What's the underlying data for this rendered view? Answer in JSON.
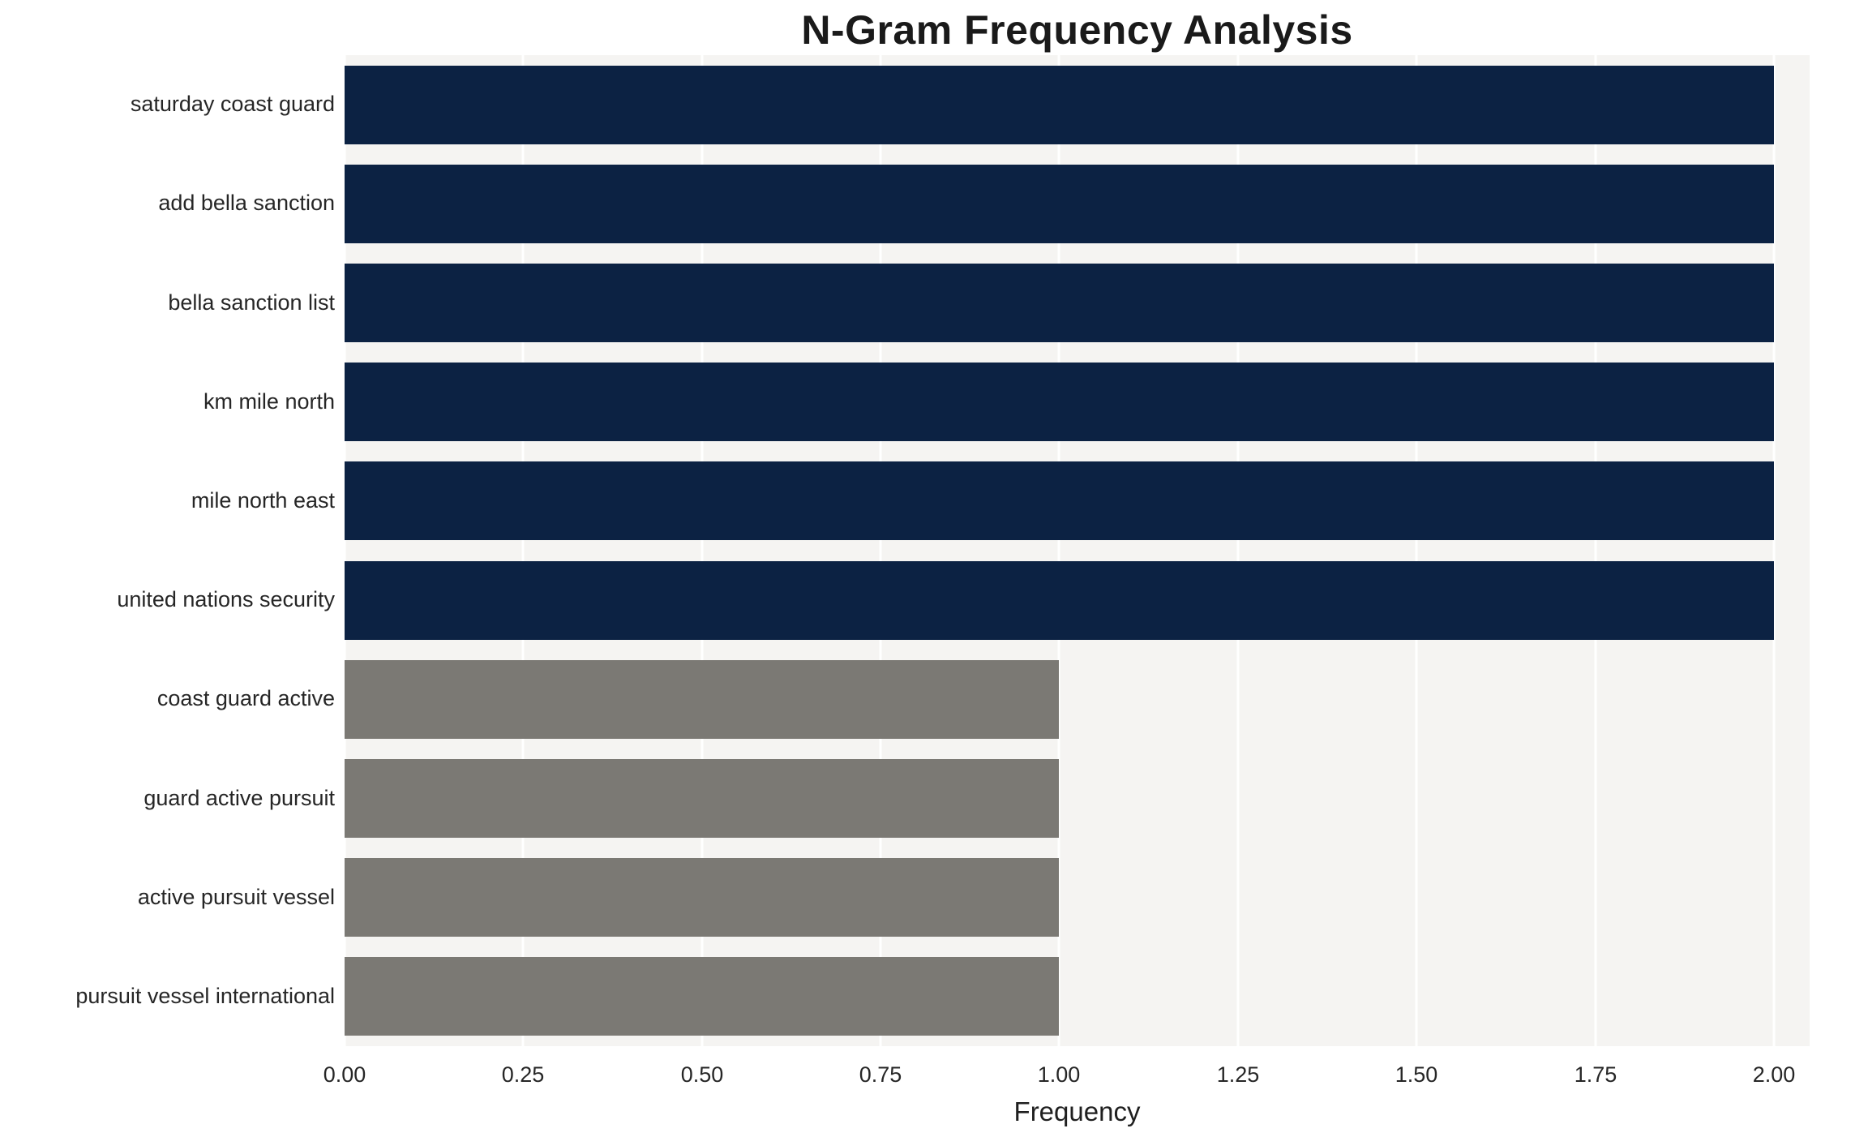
{
  "chart_data": {
    "type": "bar",
    "orientation": "horizontal",
    "title": "N-Gram Frequency Analysis",
    "xlabel": "Frequency",
    "ylabel": "",
    "categories": [
      "saturday coast guard",
      "add bella sanction",
      "bella sanction list",
      "km mile north",
      "mile north east",
      "united nations security",
      "coast guard active",
      "guard active pursuit",
      "active pursuit vessel",
      "pursuit vessel international"
    ],
    "values": [
      2,
      2,
      2,
      2,
      2,
      2,
      1,
      1,
      1,
      1
    ],
    "bar_colors": [
      "#0c2243",
      "#0c2243",
      "#0c2243",
      "#0c2243",
      "#0c2243",
      "#0c2243",
      "#7b7974",
      "#7b7974",
      "#7b7974",
      "#7b7974"
    ],
    "xlim": [
      0,
      2.05
    ],
    "xticks": [
      0,
      0.25,
      0.5,
      0.75,
      1.0,
      1.25,
      1.5,
      1.75,
      2.0
    ],
    "xtick_labels": [
      "0.00",
      "0.25",
      "0.50",
      "0.75",
      "1.00",
      "1.25",
      "1.50",
      "1.75",
      "2.00"
    ],
    "grid": true,
    "legend": "none",
    "plot_background": "#f5f4f2",
    "grid_color": "#ffffff"
  }
}
